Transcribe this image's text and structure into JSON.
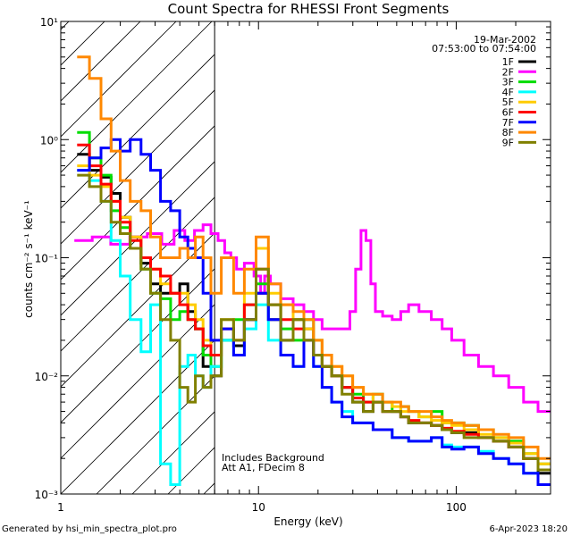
{
  "chart_data": {
    "type": "line",
    "title": "Count Spectra for RHESSI Front Segments",
    "xlabel": "Energy (keV)",
    "ylabel": "counts cm⁻² s⁻¹ keV⁻¹",
    "xscale": "log",
    "yscale": "log",
    "xlim": [
      1,
      300
    ],
    "ylim": [
      0.001,
      10
    ],
    "x_ticks": [
      {
        "value": 1,
        "label": "1"
      },
      {
        "value": 10,
        "label": "10"
      },
      {
        "value": 100,
        "label": "100"
      }
    ],
    "y_ticks": [
      {
        "value": 10,
        "label": "10¹"
      },
      {
        "value": 1,
        "label": "10⁰"
      },
      {
        "value": 0.1,
        "label": "10⁻¹"
      },
      {
        "value": 0.01,
        "label": "10⁻²"
      },
      {
        "value": 0.001,
        "label": "10⁻³"
      }
    ],
    "hatched_region_x": [
      1,
      6
    ],
    "annotations": {
      "date": "19-Mar-2002",
      "time_range": "07:53:00 to 07:54:00",
      "background_note": "Includes Background",
      "attenuator_note": "Att A1, FDecim 8"
    },
    "series": [
      {
        "name": "1F",
        "color": "#000000",
        "energies": [
          1.3,
          1.5,
          1.7,
          1.9,
          2.1,
          2.4,
          2.7,
          3.0,
          3.4,
          3.8,
          4.2,
          4.6,
          5.0,
          5.5,
          6.0,
          7.0,
          8.0,
          9.0,
          10.5,
          12.0,
          14.0,
          16.0,
          18.0,
          20.0,
          22.0,
          25.0,
          28.0,
          32.0,
          36.0,
          40.0,
          45.0,
          50.0,
          55.0,
          60.0,
          70.0,
          80.0,
          90.0,
          100.0,
          120.0,
          140.0,
          170.0,
          200.0,
          240.0,
          280.0
        ],
        "values": [
          0.75,
          0.55,
          0.48,
          0.35,
          0.22,
          0.15,
          0.09,
          0.06,
          0.05,
          0.05,
          0.06,
          0.035,
          0.025,
          0.012,
          0.01,
          0.02,
          0.018,
          0.03,
          0.05,
          0.03,
          0.02,
          0.03,
          0.025,
          0.015,
          0.012,
          0.01,
          0.008,
          0.006,
          0.005,
          0.006,
          0.005,
          0.005,
          0.0045,
          0.004,
          0.004,
          0.0038,
          0.0035,
          0.0033,
          0.0033,
          0.003,
          0.0028,
          0.0025,
          0.002,
          0.0015
        ]
      },
      {
        "name": "2F",
        "color": "#ff00ff",
        "energies": [
          1.3,
          1.6,
          2.0,
          2.5,
          3.0,
          3.5,
          4.0,
          4.5,
          5.0,
          5.5,
          6.0,
          6.5,
          7.0,
          7.5,
          8.0,
          9.0,
          10.0,
          10.5,
          11.0,
          12.0,
          14.0,
          16.0,
          18.0,
          20.0,
          22.0,
          25.0,
          28.0,
          30.0,
          32.0,
          34.0,
          36.0,
          38.0,
          40.0,
          45.0,
          50.0,
          55.0,
          60.0,
          70.0,
          80.0,
          90.0,
          100.0,
          120.0,
          140.0,
          170.0,
          200.0,
          240.0,
          280.0
        ],
        "values": [
          0.14,
          0.15,
          0.13,
          0.15,
          0.16,
          0.13,
          0.17,
          0.14,
          0.17,
          0.19,
          0.16,
          0.14,
          0.11,
          0.1,
          0.08,
          0.09,
          0.07,
          0.05,
          0.07,
          0.06,
          0.045,
          0.04,
          0.035,
          0.03,
          0.025,
          0.025,
          0.025,
          0.035,
          0.08,
          0.17,
          0.14,
          0.06,
          0.035,
          0.032,
          0.03,
          0.035,
          0.04,
          0.035,
          0.03,
          0.025,
          0.02,
          0.015,
          0.012,
          0.01,
          0.008,
          0.006,
          0.005
        ]
      },
      {
        "name": "3F",
        "color": "#00dd00",
        "energies": [
          1.3,
          1.5,
          1.7,
          1.9,
          2.1,
          2.4,
          2.7,
          3.0,
          3.4,
          3.8,
          4.2,
          4.6,
          5.0,
          5.5,
          6.0,
          7.0,
          8.0,
          9.0,
          10.5,
          12.0,
          14.0,
          16.0,
          18.0,
          20.0,
          22.0,
          25.0,
          28.0,
          32.0,
          36.0,
          40.0,
          45.0,
          50.0,
          55.0,
          60.0,
          70.0,
          80.0,
          90.0,
          100.0,
          120.0,
          140.0,
          170.0,
          200.0,
          240.0,
          280.0
        ],
        "values": [
          1.15,
          0.7,
          0.5,
          0.25,
          0.18,
          0.12,
          0.08,
          0.05,
          0.045,
          0.03,
          0.035,
          0.03,
          0.025,
          0.015,
          0.012,
          0.02,
          0.03,
          0.04,
          0.06,
          0.04,
          0.025,
          0.02,
          0.03,
          0.02,
          0.012,
          0.01,
          0.008,
          0.007,
          0.006,
          0.007,
          0.006,
          0.005,
          0.0055,
          0.005,
          0.0045,
          0.005,
          0.004,
          0.004,
          0.0038,
          0.0035,
          0.003,
          0.0028,
          0.0022,
          0.0018
        ]
      },
      {
        "name": "4F",
        "color": "#00ffff",
        "energies": [
          1.3,
          1.5,
          1.7,
          1.9,
          2.1,
          2.4,
          2.7,
          3.0,
          3.4,
          3.8,
          4.2,
          4.6,
          5.0,
          5.5,
          6.0,
          7.0,
          8.0,
          9.0,
          10.5,
          12.0,
          14.0,
          16.0,
          18.0,
          20.0,
          22.0,
          25.0,
          28.0,
          32.0,
          36.0,
          40.0,
          45.0,
          50.0,
          55.0,
          60.0,
          70.0,
          80.0,
          90.0,
          100.0,
          120.0,
          140.0,
          170.0,
          200.0,
          240.0,
          280.0
        ],
        "values": [
          0.55,
          0.45,
          0.3,
          0.14,
          0.07,
          0.03,
          0.016,
          0.04,
          0.0018,
          0.0012,
          0.012,
          0.015,
          0.01,
          0.008,
          0.012,
          0.02,
          0.015,
          0.025,
          0.04,
          0.02,
          0.015,
          0.012,
          0.02,
          0.012,
          0.008,
          0.006,
          0.005,
          0.004,
          0.004,
          0.0035,
          0.0035,
          0.003,
          0.003,
          0.0028,
          0.0028,
          0.003,
          0.0026,
          0.0025,
          0.0025,
          0.0023,
          0.002,
          0.0018,
          0.0015,
          0.0012
        ]
      },
      {
        "name": "5F",
        "color": "#ffcc00",
        "energies": [
          1.3,
          1.5,
          1.7,
          1.9,
          2.1,
          2.4,
          2.7,
          3.0,
          3.4,
          3.8,
          4.2,
          4.6,
          5.0,
          5.5,
          6.0,
          7.0,
          8.0,
          9.0,
          10.5,
          12.0,
          14.0,
          16.0,
          18.0,
          20.0,
          22.0,
          25.0,
          28.0,
          32.0,
          36.0,
          40.0,
          45.0,
          50.0,
          55.0,
          60.0,
          70.0,
          80.0,
          90.0,
          100.0,
          120.0,
          140.0,
          170.0,
          200.0,
          240.0,
          280.0
        ],
        "values": [
          0.6,
          0.5,
          0.4,
          0.3,
          0.22,
          0.15,
          0.1,
          0.08,
          0.06,
          0.05,
          0.05,
          0.04,
          0.03,
          0.02,
          0.015,
          0.03,
          0.02,
          0.05,
          0.12,
          0.05,
          0.04,
          0.03,
          0.025,
          0.02,
          0.015,
          0.012,
          0.01,
          0.008,
          0.007,
          0.006,
          0.006,
          0.0055,
          0.005,
          0.005,
          0.0045,
          0.0042,
          0.004,
          0.0038,
          0.0035,
          0.0032,
          0.003,
          0.0027,
          0.0022,
          0.0018
        ]
      },
      {
        "name": "6F",
        "color": "#ff0000",
        "energies": [
          1.3,
          1.5,
          1.7,
          1.9,
          2.1,
          2.4,
          2.7,
          3.0,
          3.4,
          3.8,
          4.2,
          4.6,
          5.0,
          5.5,
          6.0,
          7.0,
          8.0,
          9.0,
          10.5,
          12.0,
          14.0,
          16.0,
          18.0,
          20.0,
          22.0,
          25.0,
          28.0,
          32.0,
          36.0,
          40.0,
          45.0,
          50.0,
          55.0,
          60.0,
          70.0,
          80.0,
          90.0,
          100.0,
          120.0,
          140.0,
          170.0,
          200.0,
          240.0,
          280.0
        ],
        "values": [
          0.9,
          0.6,
          0.42,
          0.3,
          0.2,
          0.14,
          0.1,
          0.08,
          0.07,
          0.05,
          0.04,
          0.03,
          0.025,
          0.018,
          0.015,
          0.025,
          0.02,
          0.04,
          0.08,
          0.04,
          0.03,
          0.025,
          0.02,
          0.015,
          0.012,
          0.01,
          0.008,
          0.0065,
          0.006,
          0.006,
          0.005,
          0.005,
          0.0045,
          0.0042,
          0.004,
          0.0038,
          0.0036,
          0.0034,
          0.0032,
          0.003,
          0.0028,
          0.0025,
          0.002,
          0.0016
        ]
      },
      {
        "name": "7F",
        "color": "#0000ff",
        "energies": [
          1.3,
          1.5,
          1.7,
          1.9,
          2.1,
          2.4,
          2.7,
          3.0,
          3.4,
          3.8,
          4.2,
          4.6,
          5.0,
          5.5,
          6.0,
          7.0,
          8.0,
          9.0,
          10.5,
          12.0,
          14.0,
          16.0,
          18.0,
          20.0,
          22.0,
          25.0,
          28.0,
          32.0,
          36.0,
          40.0,
          45.0,
          50.0,
          55.0,
          60.0,
          70.0,
          80.0,
          90.0,
          100.0,
          120.0,
          140.0,
          170.0,
          200.0,
          240.0,
          280.0
        ],
        "values": [
          0.55,
          0.7,
          0.85,
          1.0,
          0.8,
          1.0,
          0.75,
          0.55,
          0.3,
          0.25,
          0.15,
          0.12,
          0.1,
          0.05,
          0.02,
          0.025,
          0.015,
          0.03,
          0.05,
          0.03,
          0.015,
          0.012,
          0.02,
          0.012,
          0.008,
          0.006,
          0.0045,
          0.004,
          0.004,
          0.0035,
          0.0035,
          0.003,
          0.003,
          0.0028,
          0.0028,
          0.003,
          0.0025,
          0.0024,
          0.0025,
          0.0022,
          0.002,
          0.0018,
          0.0015,
          0.0012
        ]
      },
      {
        "name": "8F",
        "color": "#ff8800",
        "energies": [
          1.3,
          1.5,
          1.7,
          1.9,
          2.1,
          2.4,
          2.7,
          3.0,
          3.4,
          3.8,
          4.2,
          4.6,
          5.0,
          5.5,
          6.0,
          7.0,
          8.0,
          9.0,
          10.5,
          12.0,
          14.0,
          16.0,
          18.0,
          20.0,
          22.0,
          25.0,
          28.0,
          32.0,
          36.0,
          40.0,
          45.0,
          50.0,
          55.0,
          60.0,
          70.0,
          80.0,
          90.0,
          100.0,
          120.0,
          140.0,
          170.0,
          200.0,
          240.0,
          280.0
        ],
        "values": [
          5.0,
          3.3,
          1.5,
          0.8,
          0.45,
          0.3,
          0.25,
          0.15,
          0.1,
          0.1,
          0.12,
          0.1,
          0.15,
          0.1,
          0.05,
          0.1,
          0.05,
          0.08,
          0.15,
          0.06,
          0.04,
          0.035,
          0.03,
          0.02,
          0.015,
          0.012,
          0.01,
          0.008,
          0.007,
          0.007,
          0.006,
          0.006,
          0.0055,
          0.005,
          0.005,
          0.0045,
          0.0042,
          0.004,
          0.0038,
          0.0035,
          0.0032,
          0.003,
          0.0025,
          0.002
        ]
      },
      {
        "name": "9F",
        "color": "#808000",
        "energies": [
          1.3,
          1.5,
          1.7,
          1.9,
          2.1,
          2.4,
          2.7,
          3.0,
          3.4,
          3.8,
          4.2,
          4.6,
          5.0,
          5.5,
          6.0,
          7.0,
          8.0,
          9.0,
          10.5,
          12.0,
          14.0,
          16.0,
          18.0,
          20.0,
          22.0,
          25.0,
          28.0,
          32.0,
          36.0,
          40.0,
          45.0,
          50.0,
          55.0,
          60.0,
          70.0,
          80.0,
          90.0,
          100.0,
          120.0,
          140.0,
          170.0,
          200.0,
          240.0,
          280.0
        ],
        "values": [
          0.5,
          0.4,
          0.3,
          0.2,
          0.16,
          0.12,
          0.08,
          0.05,
          0.03,
          0.02,
          0.008,
          0.006,
          0.01,
          0.008,
          0.01,
          0.03,
          0.02,
          0.03,
          0.08,
          0.04,
          0.02,
          0.03,
          0.02,
          0.015,
          0.012,
          0.01,
          0.007,
          0.006,
          0.005,
          0.006,
          0.005,
          0.005,
          0.0045,
          0.004,
          0.004,
          0.0038,
          0.0035,
          0.0033,
          0.003,
          0.003,
          0.0028,
          0.0025,
          0.002,
          0.0016
        ]
      }
    ]
  },
  "footer": {
    "generated_by": "Generated by hsi_min_spectra_plot.pro",
    "timestamp": "6-Apr-2023 18:20"
  }
}
